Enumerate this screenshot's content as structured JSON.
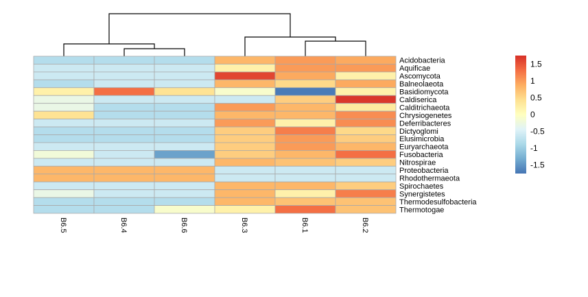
{
  "chart_data": {
    "type": "heatmap",
    "title": "",
    "rows": [
      "Acidobacteria",
      "Aquificae",
      "Ascomycota",
      "Balneolaeota",
      "Basidiomycota",
      "Caldiserica",
      "Calditrichaeota",
      "Chrysiogenetes",
      "Deferribacteres",
      "Dictyoglomi",
      "Elusimicrobia",
      "Euryarchaeota",
      "Fusobacteria",
      "Nitrospirae",
      "Proteobacteria",
      "Rhodothermaeota",
      "Spirochaetes",
      "Synergistetes",
      "Thermodesulfobacteria",
      "Thermotogae"
    ],
    "columns": [
      "B6.5",
      "B6.4",
      "B6.6",
      "B6.3",
      "B6.1",
      "B6.2"
    ],
    "values": [
      [
        -0.8,
        -0.8,
        -0.8,
        0.8,
        1.0,
        0.9
      ],
      [
        -0.6,
        -0.6,
        -0.6,
        0.2,
        1.0,
        1.0
      ],
      [
        -0.6,
        -0.6,
        -0.6,
        1.6,
        0.9,
        0.2
      ],
      [
        -0.8,
        -0.6,
        -0.6,
        0.8,
        0.5,
        0.9
      ],
      [
        0.2,
        1.3,
        0.4,
        -0.1,
        -1.7,
        0.2
      ],
      [
        -0.3,
        -0.6,
        -0.6,
        -0.6,
        0.6,
        1.7
      ],
      [
        -0.3,
        -0.8,
        -0.8,
        1.0,
        0.8,
        0.3
      ],
      [
        0.4,
        -0.8,
        -0.8,
        0.8,
        0.8,
        1.1
      ],
      [
        -0.6,
        -0.6,
        -0.6,
        1.0,
        0.2,
        1.1
      ],
      [
        -0.8,
        -0.8,
        -0.8,
        0.6,
        1.2,
        0.5
      ],
      [
        -0.8,
        -0.8,
        -0.8,
        0.6,
        1.0,
        0.6
      ],
      [
        -0.6,
        -0.6,
        -0.6,
        0.6,
        1.0,
        0.8
      ],
      [
        -0.2,
        -0.6,
        -1.4,
        0.6,
        0.8,
        1.3
      ],
      [
        -0.6,
        -0.6,
        -0.6,
        0.8,
        0.7,
        0.6
      ],
      [
        0.8,
        0.8,
        0.8,
        -0.6,
        -0.6,
        -0.6
      ],
      [
        0.8,
        0.8,
        0.8,
        -0.6,
        -0.6,
        -0.6
      ],
      [
        -0.6,
        -0.6,
        -0.6,
        0.8,
        0.8,
        0.6
      ],
      [
        -0.3,
        -0.6,
        -0.6,
        0.8,
        0.2,
        1.2
      ],
      [
        -0.8,
        -0.8,
        -0.8,
        0.8,
        0.7,
        0.7
      ],
      [
        -0.8,
        -0.8,
        -0.1,
        0.2,
        1.3,
        0.7
      ]
    ],
    "colorbar": {
      "ticks": [
        "1.5",
        "1",
        "0.5",
        "0",
        "-0.5",
        "-1",
        "-1.5"
      ],
      "tick_values": [
        1.5,
        1,
        0.5,
        0,
        -0.5,
        -1,
        -1.5
      ],
      "range": [
        -1.75,
        1.75
      ],
      "colors": [
        "#4575b4",
        "#74add1",
        "#abd9e9",
        "#e0f3f8",
        "#ffffbf",
        "#fee090",
        "#fdae61",
        "#f46d43",
        "#d73027"
      ]
    },
    "column_dendrogram": {
      "merges": [
        [
          1,
          2
        ],
        [
          0,
          "B6.4+B6.6"
        ],
        [
          4,
          5
        ],
        [
          3,
          "B6.1+B6.2"
        ],
        [
          "left",
          "right"
        ]
      ]
    },
    "legend_position": "right"
  }
}
